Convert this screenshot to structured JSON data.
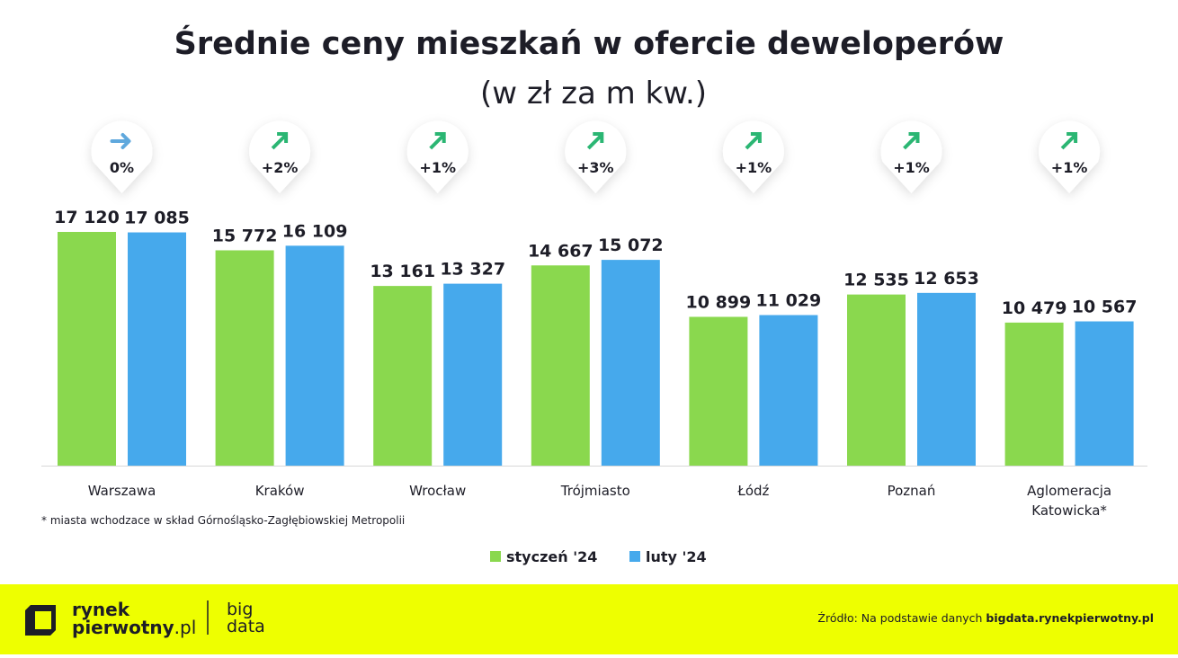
{
  "chart_data": {
    "type": "bar",
    "title": "Średnie ceny mieszkań w ofercie deweloperów",
    "subtitle": "(w zł za m kw.)",
    "categories": [
      "Warszawa",
      "Kraków",
      "Wrocław",
      "Trójmiasto",
      "Łódź",
      "Poznań",
      "Aglomeracja Katowicka*"
    ],
    "category_lines": [
      [
        "Warszawa"
      ],
      [
        "Kraków"
      ],
      [
        "Wrocław"
      ],
      [
        "Trójmiasto"
      ],
      [
        "Łódź"
      ],
      [
        "Poznań"
      ],
      [
        "Aglomeracja",
        "Katowicka*"
      ]
    ],
    "series": [
      {
        "name": "styczeń '24",
        "color": "#8ad84e",
        "values": [
          17120,
          15772,
          13161,
          14667,
          10899,
          12535,
          10479
        ],
        "labels": [
          "17 120",
          "15 772",
          "13 161",
          "14 667",
          "10 899",
          "12 535",
          "10 479"
        ]
      },
      {
        "name": "luty '24",
        "color": "#46a9ec",
        "values": [
          17085,
          16109,
          13327,
          15072,
          11029,
          12653,
          10567
        ],
        "labels": [
          "17 085",
          "16 109",
          "13 327",
          "15 072",
          "11 029",
          "12 653",
          "10 567"
        ]
      }
    ],
    "changes": [
      {
        "label": "0%",
        "direction": "flat",
        "color": "#5fa8dd"
      },
      {
        "label": "+2%",
        "direction": "up",
        "color": "#2bb673"
      },
      {
        "label": "+1%",
        "direction": "up",
        "color": "#2bb673"
      },
      {
        "label": "+3%",
        "direction": "up",
        "color": "#2bb673"
      },
      {
        "label": "+1%",
        "direction": "up",
        "color": "#2bb673"
      },
      {
        "label": "+1%",
        "direction": "up",
        "color": "#2bb673"
      },
      {
        "label": "+1%",
        "direction": "up",
        "color": "#2bb673"
      }
    ],
    "ylim": [
      0,
      17120
    ],
    "grid": false,
    "legend": "bottom-center",
    "footnote": "* miasta wchodzace w skład Górnośląsko-Zagłębiowskiej Metropolii"
  },
  "footer": {
    "background": "#eeff00",
    "logo_line1": "rynek",
    "logo_line2": "pierwotny",
    "logo_suffix": ".pl",
    "big_line1": "big",
    "big_line2": "data",
    "source_prefix": "Źródło: Na podstawie danych ",
    "source_bold": "bigdata.rynekpierwotny.pl"
  }
}
